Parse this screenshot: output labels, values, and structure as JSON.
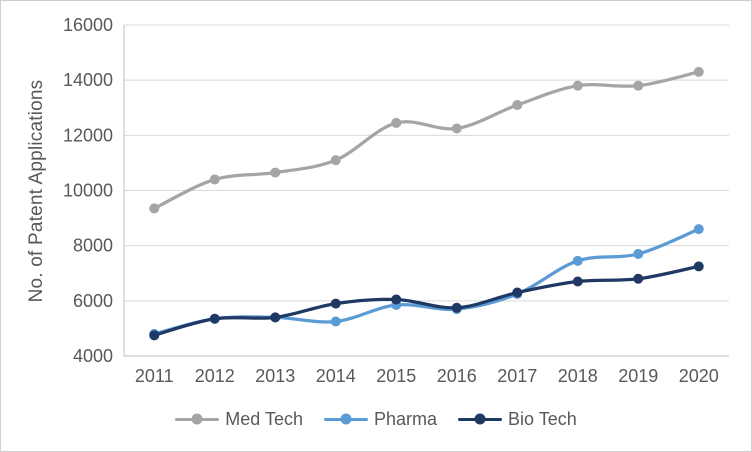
{
  "chart_data": {
    "type": "line",
    "title": "",
    "xlabel": "",
    "ylabel": "No. of Patent Applications",
    "categories": [
      "2011",
      "2012",
      "2013",
      "2014",
      "2015",
      "2016",
      "2017",
      "2018",
      "2019",
      "2020"
    ],
    "series": [
      {
        "name": "Med Tech",
        "color": "#A5A5A5",
        "values": [
          9350,
          10400,
          10650,
          11100,
          12450,
          12250,
          13100,
          13800,
          13800,
          14300
        ]
      },
      {
        "name": "Pharma",
        "color": "#5B9BD5",
        "values": [
          4800,
          5350,
          5400,
          5250,
          5850,
          5700,
          6250,
          7450,
          7700,
          8600
        ]
      },
      {
        "name": "Bio Tech",
        "color": "#1F3864",
        "values": [
          4750,
          5350,
          5400,
          5900,
          6050,
          5750,
          6300,
          6700,
          6800,
          7250
        ]
      }
    ],
    "ylim": [
      4000,
      16000
    ],
    "yticks": [
      4000,
      6000,
      8000,
      10000,
      12000,
      14000,
      16000
    ],
    "grid": true,
    "smooth_lines": true,
    "legend_position": "bottom"
  },
  "styles": {
    "background": "#FFFFFF",
    "outer_border_color": "#CFCFCF",
    "grid_color": "#D9D9D9",
    "axis_line_color": "#BFBFBF",
    "tick_text_color": "#595959",
    "axis_title_color": "#595959",
    "legend_text_color": "#595959"
  }
}
